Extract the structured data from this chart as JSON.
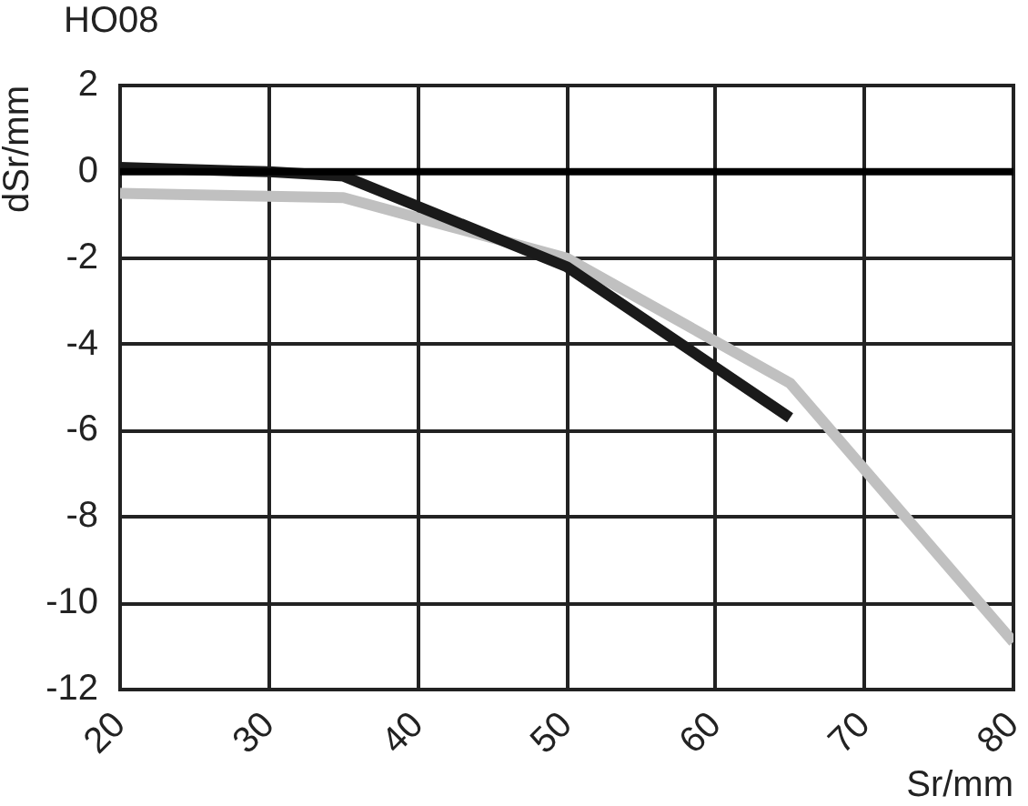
{
  "chart_data": {
    "type": "line",
    "title": "HO08",
    "xlabel": "Sr/mm",
    "ylabel": "dSr/mm",
    "series": [
      {
        "color": "#1a1a1a",
        "x": [
          20,
          30,
          35,
          50,
          65
        ],
        "values": [
          0.1,
          0,
          -0.1,
          -2.2,
          -5.7
        ]
      },
      {
        "color": "#c0c0c0",
        "x": [
          20,
          35,
          50,
          65,
          80
        ],
        "values": [
          -0.5,
          -0.6,
          -2.0,
          -4.9,
          -10.9
        ]
      }
    ],
    "xlim": [
      20,
      80
    ],
    "xticks": [
      20,
      30,
      40,
      50,
      60,
      70,
      80
    ],
    "ylim": [
      -12,
      2
    ],
    "yticks": [
      -12,
      -10,
      -8,
      -6,
      -4,
      -2,
      0,
      2
    ],
    "grid": true,
    "legend": false,
    "marker": "none",
    "line_style": "solid",
    "ref_lines": [
      {
        "axis": "y",
        "value": 0,
        "color": "#000000"
      }
    ]
  }
}
